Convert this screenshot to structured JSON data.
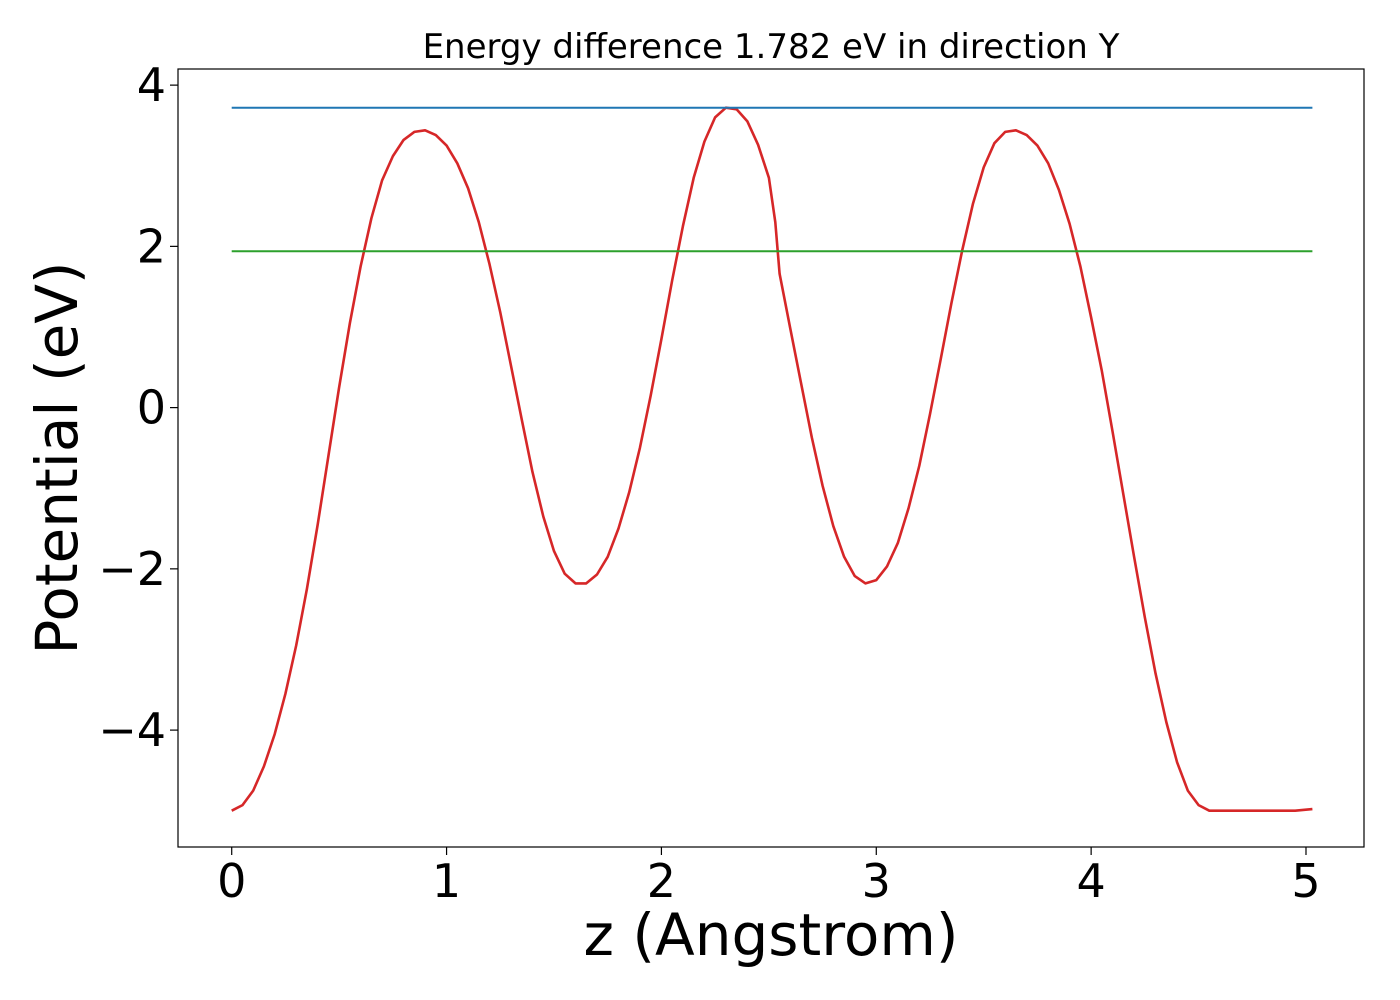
{
  "chart_data": {
    "type": "line",
    "title": "Energy difference 1.782 eV in direction Y",
    "xlabel": "z (Angstrom)",
    "ylabel": "Potential (eV)",
    "xlim": [
      -0.25,
      5.27
    ],
    "ylim": [
      -5.45,
      4.2
    ],
    "xticks": [
      0,
      1,
      2,
      3,
      4,
      5
    ],
    "xtick_labels": [
      "0",
      "1",
      "2",
      "3",
      "4",
      "5"
    ],
    "yticks": [
      4,
      2,
      0,
      -2,
      -4
    ],
    "ytick_labels": [
      "4",
      "2",
      "0",
      "−2",
      "−4"
    ],
    "grid": false,
    "series": [
      {
        "color": "#d62728",
        "kind": "curve",
        "x": [
          0.0,
          0.05,
          0.1,
          0.15,
          0.2,
          0.25,
          0.3,
          0.35,
          0.4,
          0.45,
          0.5,
          0.55,
          0.6,
          0.65,
          0.7,
          0.75,
          0.8,
          0.85,
          0.9,
          0.95,
          1.0,
          1.05,
          1.1,
          1.15,
          1.2,
          1.25,
          1.3,
          1.35,
          1.4,
          1.45,
          1.5,
          1.55,
          1.6,
          1.65,
          1.7,
          1.75,
          1.8,
          1.85,
          1.9,
          1.95,
          2.0,
          2.05,
          2.1,
          2.15,
          2.2,
          2.25,
          2.3,
          2.35,
          2.4,
          2.45,
          2.5,
          2.53,
          2.55,
          2.6,
          2.65,
          2.7,
          2.75,
          2.8,
          2.85,
          2.9,
          2.95,
          3.0,
          3.05,
          3.1,
          3.15,
          3.2,
          3.25,
          3.3,
          3.35,
          3.4,
          3.45,
          3.5,
          3.55,
          3.6,
          3.65,
          3.7,
          3.75,
          3.8,
          3.85,
          3.9,
          3.95,
          4.0,
          4.05,
          4.1,
          4.15,
          4.2,
          4.25,
          4.3,
          4.35,
          4.4,
          4.45,
          4.5,
          4.55,
          4.6,
          4.65,
          4.7,
          4.75,
          4.8,
          4.85,
          4.9,
          4.95,
          5.03
        ],
        "y": [
          -5.0,
          -4.93,
          -4.75,
          -4.45,
          -4.05,
          -3.55,
          -2.95,
          -2.25,
          -1.45,
          -0.6,
          0.25,
          1.05,
          1.75,
          2.35,
          2.82,
          3.12,
          3.32,
          3.42,
          3.44,
          3.38,
          3.25,
          3.03,
          2.72,
          2.3,
          1.78,
          1.18,
          0.52,
          -0.15,
          -0.8,
          -1.35,
          -1.78,
          -2.06,
          -2.18,
          -2.18,
          -2.07,
          -1.85,
          -1.5,
          -1.05,
          -0.5,
          0.15,
          0.85,
          1.58,
          2.25,
          2.85,
          3.3,
          3.6,
          3.72,
          3.7,
          3.55,
          3.26,
          2.85,
          2.3,
          1.66,
          0.98,
          0.3,
          -0.37,
          -0.97,
          -1.47,
          -1.85,
          -2.09,
          -2.18,
          -2.14,
          -1.97,
          -1.68,
          -1.25,
          -0.72,
          -0.08,
          0.6,
          1.3,
          1.95,
          2.53,
          2.98,
          3.28,
          3.42,
          3.44,
          3.38,
          3.25,
          3.03,
          2.7,
          2.28,
          1.75,
          1.12,
          0.45,
          -0.3,
          -1.08,
          -1.85,
          -2.6,
          -3.3,
          -3.9,
          -4.4,
          -4.75,
          -4.93,
          -5.0,
          -5.0,
          -5.0,
          -5.0,
          -5.0,
          -5.0,
          -5.0,
          -5.0,
          -5.0,
          -4.98
        ]
      },
      {
        "color": "#1f77b4",
        "kind": "hline",
        "x": [
          0.0,
          5.03
        ],
        "y": [
          3.72,
          3.72
        ]
      },
      {
        "color": "#2ca02c",
        "kind": "hline",
        "x": [
          0.0,
          5.03
        ],
        "y": [
          1.94,
          1.94
        ]
      }
    ]
  }
}
